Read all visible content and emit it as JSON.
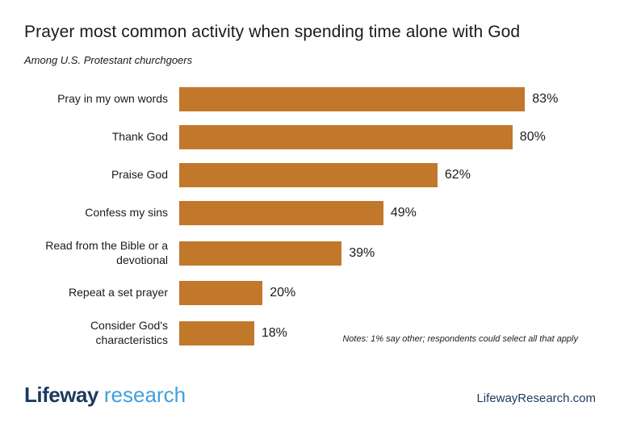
{
  "chart_data": {
    "type": "bar",
    "orientation": "horizontal",
    "title": "Prayer most common activity when spending time alone with God",
    "subtitle": "Among U.S. Protestant churchgoers",
    "categories": [
      "Pray in my own words",
      "Thank God",
      "Praise God",
      "Confess my sins",
      "Read from the Bible or a devotional",
      "Repeat a set prayer",
      "Consider God's characteristics"
    ],
    "values": [
      83,
      80,
      62,
      49,
      39,
      20,
      18
    ],
    "value_suffix": "%",
    "xlim": [
      0,
      100
    ],
    "grid": false,
    "legend": "none",
    "bar_color": "#C1782B",
    "notes": "Notes: 1% say other; respondents could select all that apply"
  },
  "footer": {
    "brand_primary": "Lifeway",
    "brand_secondary": "research",
    "brand_primary_color": "#1C3A5E",
    "brand_secondary_color": "#3FA0DC",
    "website": "LifewayResearch.com"
  }
}
